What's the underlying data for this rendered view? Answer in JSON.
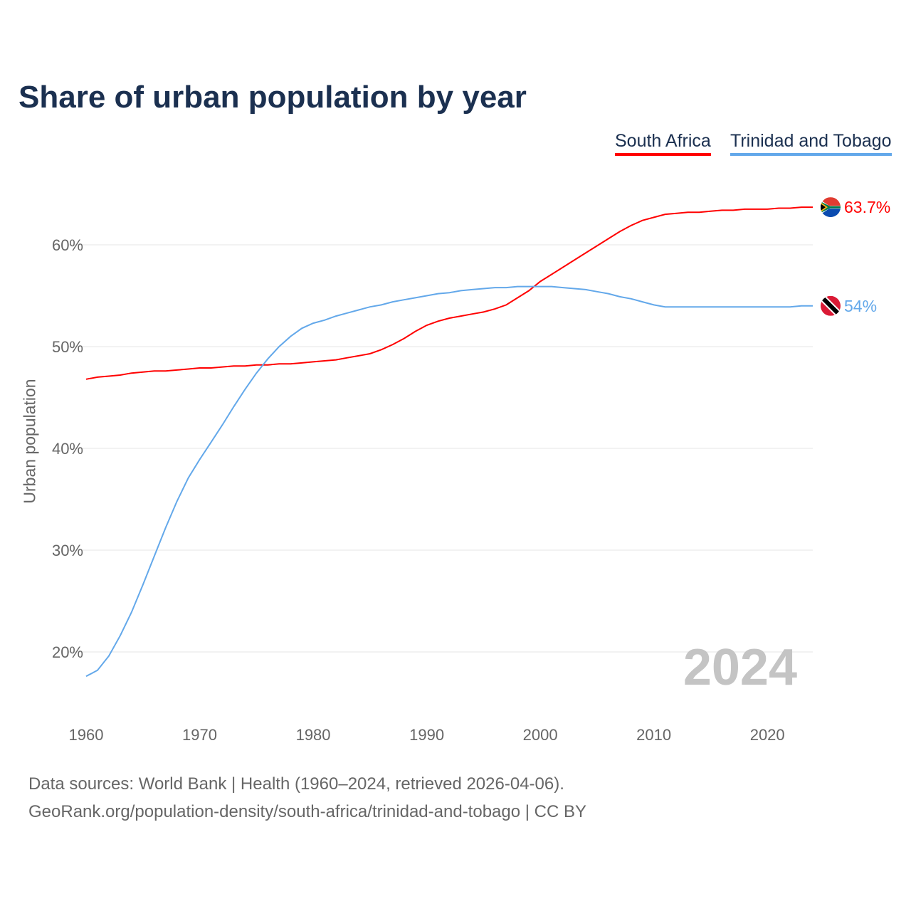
{
  "chart_data": {
    "type": "line",
    "title": "Share of urban population by year",
    "xlabel": "",
    "ylabel": "Urban population",
    "xlim": [
      1960,
      2024
    ],
    "ylim": [
      15,
      66
    ],
    "x_ticks": [
      1960,
      1970,
      1980,
      1990,
      2000,
      2010,
      2020
    ],
    "y_ticks": [
      20,
      30,
      40,
      50,
      60
    ],
    "y_tick_labels": [
      "20%",
      "30%",
      "40%",
      "50%",
      "60%"
    ],
    "grid": true,
    "legend_position": "top-right",
    "watermark_year": "2024",
    "x": [
      1960,
      1961,
      1962,
      1963,
      1964,
      1965,
      1966,
      1967,
      1968,
      1969,
      1970,
      1971,
      1972,
      1973,
      1974,
      1975,
      1976,
      1977,
      1978,
      1979,
      1980,
      1981,
      1982,
      1983,
      1984,
      1985,
      1986,
      1987,
      1988,
      1989,
      1990,
      1991,
      1992,
      1993,
      1994,
      1995,
      1996,
      1997,
      1998,
      1999,
      2000,
      2001,
      2002,
      2003,
      2004,
      2005,
      2006,
      2007,
      2008,
      2009,
      2010,
      2011,
      2012,
      2013,
      2014,
      2015,
      2016,
      2017,
      2018,
      2019,
      2020,
      2021,
      2022,
      2023,
      2024
    ],
    "series": [
      {
        "name": "South Africa",
        "color": "#ff0000",
        "end_label": "63.7%",
        "flag": "south-africa",
        "values": [
          46.8,
          47.0,
          47.1,
          47.2,
          47.4,
          47.5,
          47.6,
          47.6,
          47.7,
          47.8,
          47.9,
          47.9,
          48.0,
          48.1,
          48.1,
          48.2,
          48.2,
          48.3,
          48.3,
          48.4,
          48.5,
          48.6,
          48.7,
          48.9,
          49.1,
          49.3,
          49.7,
          50.2,
          50.8,
          51.5,
          52.1,
          52.5,
          52.8,
          53.0,
          53.2,
          53.4,
          53.7,
          54.1,
          54.8,
          55.5,
          56.4,
          57.1,
          57.8,
          58.5,
          59.2,
          59.9,
          60.6,
          61.3,
          61.9,
          62.4,
          62.7,
          63.0,
          63.1,
          63.2,
          63.2,
          63.3,
          63.4,
          63.4,
          63.5,
          63.5,
          63.5,
          63.6,
          63.6,
          63.7,
          63.7
        ]
      },
      {
        "name": "Trinidad and Tobago",
        "color": "#63a8ea",
        "end_label": "54%",
        "flag": "trinidad-and-tobago",
        "values": [
          17.6,
          18.2,
          19.6,
          21.6,
          23.9,
          26.6,
          29.4,
          32.2,
          34.8,
          37.1,
          38.9,
          40.6,
          42.3,
          44.1,
          45.8,
          47.4,
          48.8,
          50.0,
          51.0,
          51.8,
          52.3,
          52.6,
          53.0,
          53.3,
          53.6,
          53.9,
          54.1,
          54.4,
          54.6,
          54.8,
          55.0,
          55.2,
          55.3,
          55.5,
          55.6,
          55.7,
          55.8,
          55.8,
          55.9,
          55.9,
          55.9,
          55.9,
          55.8,
          55.7,
          55.6,
          55.4,
          55.2,
          54.9,
          54.7,
          54.4,
          54.1,
          53.9,
          53.9,
          53.9,
          53.9,
          53.9,
          53.9,
          53.9,
          53.9,
          53.9,
          53.9,
          53.9,
          53.9,
          54.0,
          54.0
        ]
      }
    ]
  },
  "footer": {
    "sources": "Data sources: World Bank | Health (1960–2024, retrieved 2026-04-06).",
    "url": "GeoRank.org/population-density/south-africa/trinidad-and-tobago | CC BY"
  }
}
